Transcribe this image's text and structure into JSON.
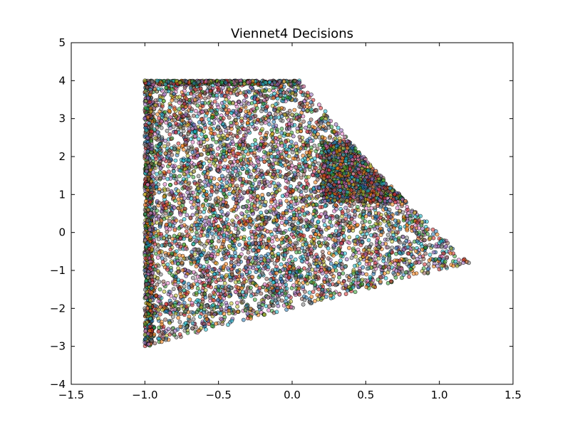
{
  "chart_data": {
    "type": "scatter",
    "title": "Viennet4 Decisions",
    "xlabel": "",
    "ylabel": "",
    "xlim": [
      -1.5,
      1.5
    ],
    "ylim": [
      -4,
      5
    ],
    "xticks": [
      -1.5,
      -1.0,
      -0.5,
      0.0,
      0.5,
      1.0,
      1.5
    ],
    "xtick_labels": [
      "−1.5",
      "−1.0",
      "−0.5",
      "0.0",
      "0.5",
      "1.0",
      "1.5"
    ],
    "yticks": [
      -4,
      -3,
      -2,
      -1,
      0,
      1,
      2,
      3,
      4,
      5
    ],
    "ytick_labels": [
      "−4",
      "−3",
      "−2",
      "−1",
      "0",
      "1",
      "2",
      "3",
      "4",
      "5"
    ],
    "grid": false,
    "legend": "none",
    "marker_edge_color": "#000000",
    "marker_fill_palette": [
      "#1f77b4",
      "#ff7f0e",
      "#2ca02c",
      "#d62728",
      "#9467bd",
      "#8c564b",
      "#e377c2",
      "#7f7f7f",
      "#bcbd22",
      "#17becf"
    ],
    "region_vertices": [
      [
        -1.0,
        -3.0
      ],
      [
        -1.0,
        4.0
      ],
      [
        0.05,
        4.0
      ],
      [
        0.55,
        1.7
      ],
      [
        1.2,
        -0.8
      ]
    ],
    "dense_cluster": {
      "x": 0.55,
      "y": 1.6
    },
    "points": [
      [
        -1.0,
        4.0
      ],
      [
        -0.9,
        3.9
      ],
      [
        -0.7,
        3.95
      ],
      [
        -0.5,
        3.9
      ],
      [
        -0.3,
        3.95
      ],
      [
        -0.1,
        3.9
      ],
      [
        0.05,
        3.95
      ],
      [
        -1.0,
        3.0
      ],
      [
        -0.8,
        3.1
      ],
      [
        -0.6,
        2.9
      ],
      [
        -0.4,
        3.2
      ],
      [
        -0.2,
        3.0
      ],
      [
        0.0,
        3.1
      ],
      [
        0.2,
        3.0
      ],
      [
        -1.0,
        2.0
      ],
      [
        -0.7,
        1.9
      ],
      [
        -0.4,
        2.1
      ],
      [
        -0.1,
        2.0
      ],
      [
        0.2,
        2.1
      ],
      [
        0.4,
        2.0
      ],
      [
        0.5,
        1.8
      ],
      [
        -1.0,
        1.0
      ],
      [
        -0.6,
        1.1
      ],
      [
        -0.2,
        0.9
      ],
      [
        0.2,
        1.0
      ],
      [
        0.5,
        1.2
      ],
      [
        0.7,
        0.8
      ],
      [
        -1.0,
        0.0
      ],
      [
        -0.6,
        0.1
      ],
      [
        -0.2,
        -0.1
      ],
      [
        0.2,
        0.0
      ],
      [
        0.6,
        0.1
      ],
      [
        0.9,
        -0.2
      ],
      [
        -1.0,
        -1.0
      ],
      [
        -0.6,
        -0.9
      ],
      [
        -0.2,
        -1.1
      ],
      [
        0.2,
        -1.0
      ],
      [
        0.6,
        -0.9
      ],
      [
        1.0,
        -0.7
      ],
      [
        1.2,
        -0.8
      ],
      [
        -1.0,
        -2.0
      ],
      [
        -0.6,
        -2.1
      ],
      [
        -0.2,
        -1.9
      ],
      [
        0.2,
        -1.6
      ],
      [
        0.6,
        -1.3
      ],
      [
        -1.0,
        -2.9
      ],
      [
        -0.8,
        -2.7
      ],
      [
        -0.6,
        -2.4
      ]
    ]
  }
}
